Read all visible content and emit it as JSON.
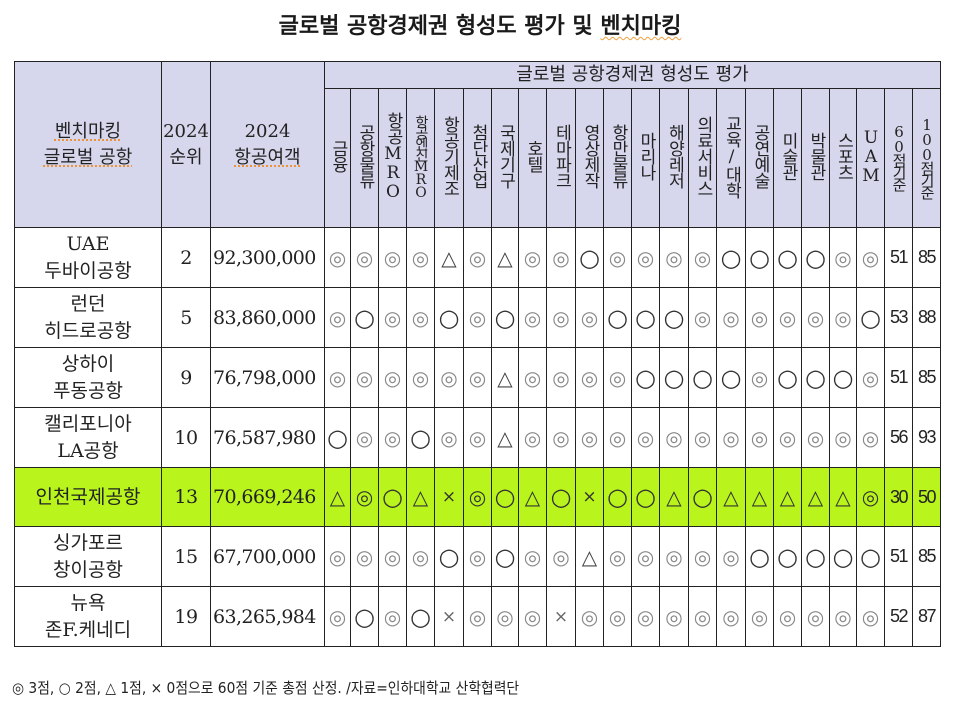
{
  "title": {
    "prefix": "글로벌 공항경제권 형성도 평가 및 ",
    "underlined": "벤치마킹"
  },
  "table": {
    "header": {
      "airport_col": [
        "벤치마킹",
        "글로벌 공항"
      ],
      "rank_col": [
        "2024",
        "순위"
      ],
      "pax_col": [
        "2024",
        "항공여객"
      ],
      "group_label": "글로벌 공항경제권 형성도 평가",
      "criteria": [
        "금융",
        "공항물류",
        "항공MRO",
        "항공엔진MRO",
        "항공기제조",
        "첨단산업",
        "국제기구",
        "호텔",
        "테마파크",
        "영상제작",
        "항만물류",
        "마리나",
        "해양레저",
        "의료서비스",
        "교육/대학",
        "공연예술",
        "미술관",
        "박물관",
        "스포츠",
        "UAM"
      ],
      "score_60": "60점기준",
      "score_100": "100점기준"
    },
    "rows": [
      {
        "name": [
          "UAE",
          "두바이공항"
        ],
        "rank": "2",
        "passengers": "92,300,000",
        "marks": [
          "◎",
          "◎",
          "◎",
          "◎",
          "△",
          "◎",
          "△",
          "◎",
          "◎",
          "○",
          "◎",
          "◎",
          "◎",
          "◎",
          "○",
          "○",
          "○",
          "○",
          "◎",
          "◎"
        ],
        "score_60": "51",
        "score_100": "85",
        "highlight": false
      },
      {
        "name": [
          "런던",
          "히드로공항"
        ],
        "rank": "5",
        "passengers": "83,860,000",
        "marks": [
          "◎",
          "○",
          "◎",
          "◎",
          "○",
          "◎",
          "○",
          "◎",
          "◎",
          "◎",
          "○",
          "○",
          "○",
          "◎",
          "◎",
          "◎",
          "◎",
          "◎",
          "◎",
          "○"
        ],
        "score_60": "53",
        "score_100": "88",
        "highlight": false
      },
      {
        "name": [
          "상하이",
          "푸동공항"
        ],
        "rank": "9",
        "passengers": "76,798,000",
        "marks": [
          "◎",
          "◎",
          "◎",
          "◎",
          "◎",
          "◎",
          "△",
          "◎",
          "◎",
          "◎",
          "◎",
          "○",
          "○",
          "○",
          "○",
          "◎",
          "○",
          "○",
          "○",
          "◎"
        ],
        "score_60": "51",
        "score_100": "85",
        "highlight": false
      },
      {
        "name": [
          "캘리포니아",
          "LA공항"
        ],
        "rank": "10",
        "passengers": "76,587,980",
        "marks": [
          "○",
          "◎",
          "◎",
          "○",
          "◎",
          "◎",
          "△",
          "◎",
          "◎",
          "◎",
          "◎",
          "◎",
          "◎",
          "◎",
          "◎",
          "◎",
          "◎",
          "◎",
          "◎",
          "◎"
        ],
        "score_60": "56",
        "score_100": "93",
        "highlight": false
      },
      {
        "name": [
          "인천국제공항"
        ],
        "rank": "13",
        "passengers": "70,669,246",
        "marks": [
          "△",
          "◎",
          "○",
          "△",
          "×",
          "◎",
          "○",
          "△",
          "○",
          "×",
          "○",
          "○",
          "△",
          "○",
          "△",
          "△",
          "△",
          "△",
          "△",
          "◎"
        ],
        "score_60": "30",
        "score_100": "50",
        "highlight": true
      },
      {
        "name": [
          "싱가포르",
          "창이공항"
        ],
        "rank": "15",
        "passengers": "67,700,000",
        "marks": [
          "◎",
          "◎",
          "◎",
          "◎",
          "○",
          "◎",
          "○",
          "◎",
          "◎",
          "△",
          "◎",
          "◎",
          "◎",
          "◎",
          "◎",
          "○",
          "○",
          "○",
          "○",
          "○"
        ],
        "score_60": "51",
        "score_100": "85",
        "highlight": false
      },
      {
        "name": [
          "뉴욕",
          "존F.케네디"
        ],
        "rank": "19",
        "passengers": "63,265,984",
        "marks": [
          "◎",
          "○",
          "◎",
          "○",
          "×",
          "◎",
          "◎",
          "◎",
          "×",
          "◎",
          "◎",
          "◎",
          "◎",
          "◎",
          "◎",
          "◎",
          "◎",
          "◎",
          "◎",
          "◎"
        ],
        "score_60": "52",
        "score_100": "87",
        "highlight": false
      }
    ]
  },
  "legend": {
    "marks": {
      "◎": 3,
      "○": 2,
      "△": 1,
      "×": 0
    },
    "text": "◎ 3점, ○ 2점, △ 1점, × 0점으로 60점 기준 총점 산정. /자료=인하대학교 산학협력단"
  },
  "colors": {
    "header_bg": "#d6d6ec",
    "highlight_row": "#b9f51c",
    "border": "#222222"
  }
}
